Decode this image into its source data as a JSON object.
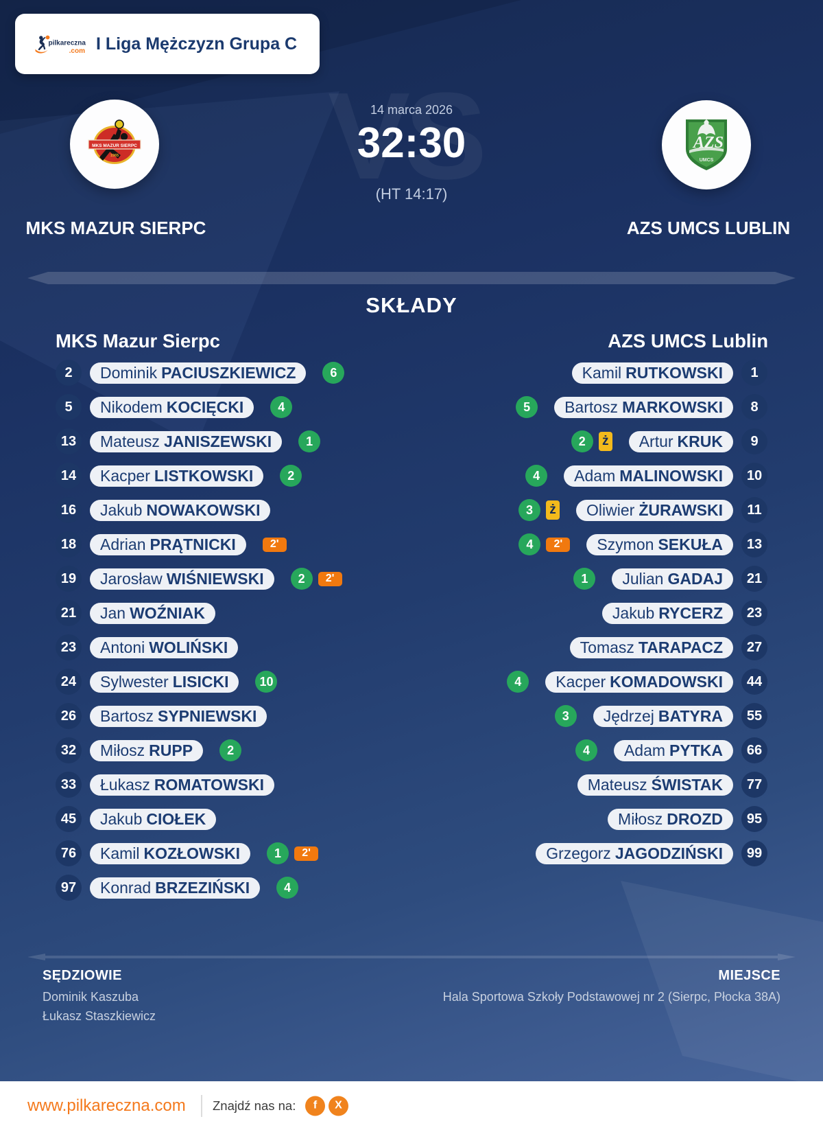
{
  "league_card": {
    "title": "I Liga Mężczyzn Grupa C",
    "logo_name": "pilkareczna",
    "logo_tld": ".com"
  },
  "match": {
    "date": "14 marca 2026",
    "score": "32:30",
    "halftime": "(HT 14:17)",
    "vs_watermark": "VS"
  },
  "teams": {
    "home": {
      "name": "MKS MAZUR SIERPC",
      "crest_text": "MKS MAZUR SIERPC"
    },
    "away": {
      "name": "AZS UMCS LUBLIN",
      "crest_text_main": "AZS",
      "crest_text_sub": "UMCS"
    }
  },
  "rosters": {
    "heading": "SKŁADY",
    "home": {
      "team_label": "MKS Mazur Sierpc",
      "players": [
        {
          "number": "2",
          "first": "Dominik",
          "last": "PACIUSZKIEWICZ",
          "badges": [
            {
              "type": "goals",
              "value": "6"
            }
          ]
        },
        {
          "number": "5",
          "first": "Nikodem",
          "last": "KOCIĘCKI",
          "badges": [
            {
              "type": "goals",
              "value": "4"
            }
          ]
        },
        {
          "number": "13",
          "first": "Mateusz",
          "last": "JANISZEWSKI",
          "badges": [
            {
              "type": "goals",
              "value": "1"
            }
          ]
        },
        {
          "number": "14",
          "first": "Kacper",
          "last": "LISTKOWSKI",
          "badges": [
            {
              "type": "goals",
              "value": "2"
            }
          ]
        },
        {
          "number": "16",
          "first": "Jakub",
          "last": "NOWAKOWSKI",
          "badges": []
        },
        {
          "number": "18",
          "first": "Adrian",
          "last": "PRĄTNICKI",
          "badges": [
            {
              "type": "susp",
              "value": "2'"
            }
          ]
        },
        {
          "number": "19",
          "first": "Jarosław",
          "last": "WIŚNIEWSKI",
          "badges": [
            {
              "type": "goals",
              "value": "2"
            },
            {
              "type": "susp",
              "value": "2'"
            }
          ]
        },
        {
          "number": "21",
          "first": "Jan",
          "last": "WOŹNIAK",
          "badges": []
        },
        {
          "number": "23",
          "first": "Antoni",
          "last": "WOLIŃSKI",
          "badges": []
        },
        {
          "number": "24",
          "first": "Sylwester",
          "last": "LISICKI",
          "badges": [
            {
              "type": "goals",
              "value": "10"
            }
          ]
        },
        {
          "number": "26",
          "first": "Bartosz",
          "last": "SYPNIEWSKI",
          "badges": []
        },
        {
          "number": "32",
          "first": "Miłosz",
          "last": "RUPP",
          "badges": [
            {
              "type": "goals",
              "value": "2"
            }
          ]
        },
        {
          "number": "33",
          "first": "Łukasz",
          "last": "ROMATOWSKI",
          "badges": []
        },
        {
          "number": "45",
          "first": "Jakub",
          "last": "CIOŁEK",
          "badges": []
        },
        {
          "number": "76",
          "first": "Kamil",
          "last": "KOZŁOWSKI",
          "badges": [
            {
              "type": "goals",
              "value": "1"
            },
            {
              "type": "susp",
              "value": "2'"
            }
          ]
        },
        {
          "number": "97",
          "first": "Konrad",
          "last": "BRZEZIŃSKI",
          "badges": [
            {
              "type": "goals",
              "value": "4"
            }
          ]
        }
      ]
    },
    "away": {
      "team_label": "AZS UMCS Lublin",
      "players": [
        {
          "number": "1",
          "first": "Kamil",
          "last": "RUTKOWSKI",
          "badges": []
        },
        {
          "number": "8",
          "first": "Bartosz",
          "last": "MARKOWSKI",
          "badges": [
            {
              "type": "goals",
              "value": "5"
            }
          ]
        },
        {
          "number": "9",
          "first": "Artur",
          "last": "KRUK",
          "badges": [
            {
              "type": "goals",
              "value": "2"
            },
            {
              "type": "yellow",
              "value": "ż"
            }
          ]
        },
        {
          "number": "10",
          "first": "Adam",
          "last": "MALINOWSKI",
          "badges": [
            {
              "type": "goals",
              "value": "4"
            }
          ]
        },
        {
          "number": "11",
          "first": "Oliwier",
          "last": "ŻURAWSKI",
          "badges": [
            {
              "type": "goals",
              "value": "3"
            },
            {
              "type": "yellow",
              "value": "ż"
            }
          ]
        },
        {
          "number": "13",
          "first": "Szymon",
          "last": "SEKUŁA",
          "badges": [
            {
              "type": "goals",
              "value": "4"
            },
            {
              "type": "susp",
              "value": "2'"
            }
          ]
        },
        {
          "number": "21",
          "first": "Julian",
          "last": "GADAJ",
          "badges": [
            {
              "type": "goals",
              "value": "1"
            }
          ]
        },
        {
          "number": "23",
          "first": "Jakub",
          "last": "RYCERZ",
          "badges": []
        },
        {
          "number": "27",
          "first": "Tomasz",
          "last": "TARAPACZ",
          "badges": []
        },
        {
          "number": "44",
          "first": "Kacper",
          "last": "KOMADOWSKI",
          "badges": [
            {
              "type": "goals",
              "value": "4"
            }
          ]
        },
        {
          "number": "55",
          "first": "Jędrzej",
          "last": "BATYRA",
          "badges": [
            {
              "type": "goals",
              "value": "3"
            }
          ]
        },
        {
          "number": "66",
          "first": "Adam",
          "last": "PYTKA",
          "badges": [
            {
              "type": "goals",
              "value": "4"
            }
          ]
        },
        {
          "number": "77",
          "first": "Mateusz",
          "last": "ŚWISTAK",
          "badges": []
        },
        {
          "number": "95",
          "first": "Miłosz",
          "last": "DROZD",
          "badges": []
        },
        {
          "number": "99",
          "first": "Grzegorz",
          "last": "JAGODZIŃSKI",
          "badges": []
        }
      ]
    }
  },
  "officials": {
    "referees_label": "SĘDZIOWIE",
    "referees": [
      "Dominik Kaszuba",
      "Łukasz Staszkiewicz"
    ],
    "venue_label": "MIEJSCE",
    "venue": "Hala Sportowa Szkoły Podstawowej nr 2 (Sierpc, Płocka 38A)"
  },
  "footer": {
    "website": "www.pilkareczna.com",
    "find_us": "Znajdź nas na:",
    "social_facebook": "f",
    "social_x": "X"
  },
  "colors": {
    "background_dark": "#14294F",
    "background_light": "#44639B",
    "accent_orange": "#f4791c",
    "goals_green": "#27a75b",
    "suspension_orange": "#f1790f",
    "yellow_card": "#f3ba1c",
    "pill_bg": "#eef1f6",
    "navy_text": "#1b3a6e"
  }
}
